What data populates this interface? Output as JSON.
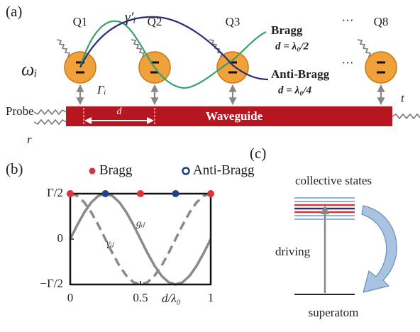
{
  "panel_a": {
    "label": "(a)",
    "qubits": [
      "Q1",
      "Q2",
      "Q3",
      "Q8"
    ],
    "ellipsis_top": "···",
    "ellipsis_mid": "···",
    "decay": "γ′ᵢ",
    "frequency": "ωᵢ",
    "coupling": "Γᵢ",
    "probe": "Probe",
    "reflection": "r",
    "transmission": "t",
    "spacing": "d",
    "waveguide": "Waveguide",
    "bragg": "Bragg",
    "bragg_condition": "d = λ₀/2",
    "anti_bragg": "Anti-Bragg",
    "anti_bragg_condition": "d = λ₀/4"
  },
  "chart_data": {
    "type": "line",
    "label": "(b)",
    "x_label": "d/λ₀",
    "x": [
      0,
      0.05,
      0.1,
      0.15,
      0.2,
      0.25,
      0.3,
      0.35,
      0.4,
      0.45,
      0.5,
      0.55,
      0.6,
      0.65,
      0.7,
      0.75,
      0.8,
      0.85,
      0.9,
      0.95,
      1
    ],
    "series": [
      {
        "name": "gᵢⱼ",
        "color": "#8a8a8a",
        "dashed": false,
        "values": [
          0,
          0.1545,
          0.2939,
          0.4045,
          0.4755,
          0.5,
          0.4755,
          0.4045,
          0.2939,
          0.1545,
          0,
          -0.1545,
          -0.2939,
          -0.4045,
          -0.4755,
          -0.5,
          -0.4755,
          -0.4045,
          -0.2939,
          -0.1545,
          0
        ]
      },
      {
        "name": "γᵢⱼ",
        "color": "#8a8a8a",
        "dashed": true,
        "values": [
          0.5,
          0.4755,
          0.4045,
          0.2939,
          0.1545,
          0,
          -0.1545,
          -0.2939,
          -0.4045,
          -0.4755,
          -0.5,
          -0.4755,
          -0.4045,
          -0.2939,
          -0.1545,
          0,
          0.1545,
          0.2939,
          0.4045,
          0.4755,
          0.5
        ]
      }
    ],
    "points": [
      {
        "name": "Bragg",
        "color": "#d9343a",
        "x": [
          0,
          0.5,
          1
        ],
        "values": [
          0.5,
          0.5,
          0.5
        ]
      },
      {
        "name": "Anti-Bragg",
        "color": "#23408e",
        "x": [
          0.25,
          0.75
        ],
        "values": [
          0.5,
          0.5
        ]
      }
    ],
    "xlim": [
      0,
      1
    ],
    "ylim": [
      -0.5,
      0.5
    ],
    "xticks": [
      0,
      0.5,
      1
    ],
    "yticks": [
      {
        "value": -0.5,
        "label": "−Γ/2"
      },
      0,
      {
        "value": 0.5,
        "label": "Γ/2"
      }
    ]
  },
  "panel_c": {
    "label": "(c)",
    "top": "collective states",
    "middle": "driving",
    "bottom": "superatom"
  }
}
